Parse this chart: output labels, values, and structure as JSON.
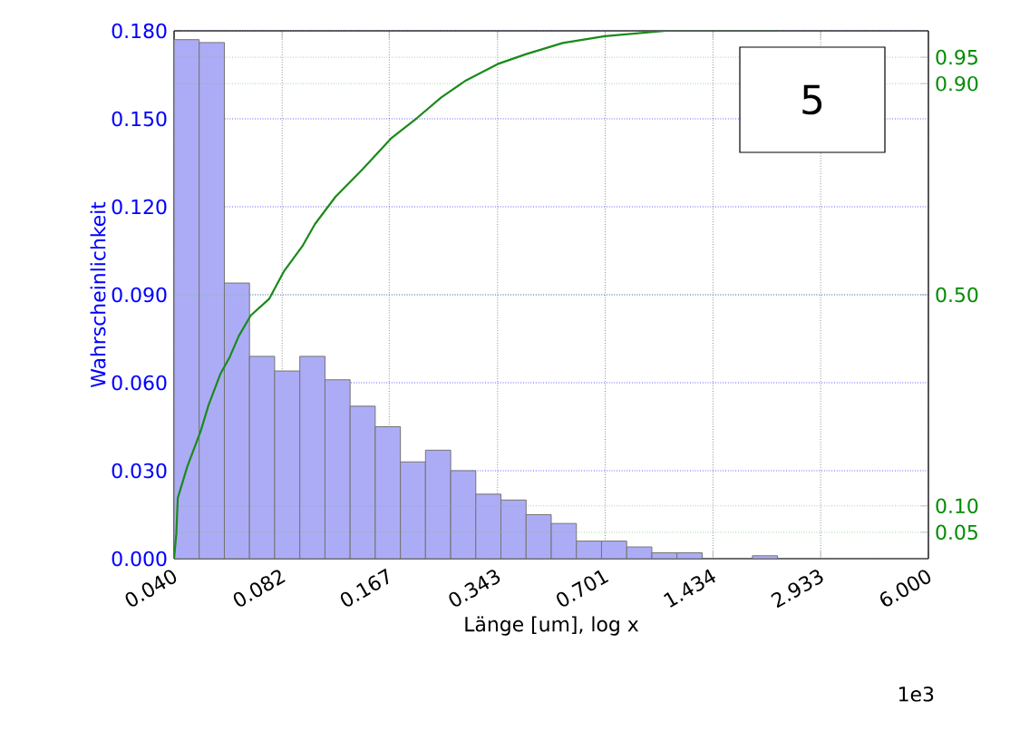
{
  "chart_data": {
    "type": "histogram",
    "xlabel": "Länge [um], log x",
    "ylabel": "Wahrscheinlichkeit",
    "log": "x",
    "grid": true,
    "annotations": [
      "5",
      "1e3"
    ],
    "xlim": [
      0.04,
      6.0
    ],
    "ylim": [
      0,
      0.18
    ],
    "y2lim": [
      0,
      1
    ],
    "xticks": [
      {
        "value": 0.04,
        "label": "0.040"
      },
      {
        "value": 0.082,
        "label": "0.082"
      },
      {
        "value": 0.167,
        "label": "0.167"
      },
      {
        "value": 0.343,
        "label": "0.343"
      },
      {
        "value": 0.701,
        "label": "0.701"
      },
      {
        "value": 1.434,
        "label": "1.434"
      },
      {
        "value": 2.933,
        "label": "2.933"
      },
      {
        "value": 6.0,
        "label": "6.000"
      }
    ],
    "yticks": [
      {
        "value": 0,
        "label": "0.000"
      },
      {
        "value": 0.03,
        "label": "0.030"
      },
      {
        "value": 0.06,
        "label": "0.060"
      },
      {
        "value": 0.09,
        "label": "0.090"
      },
      {
        "value": 0.12,
        "label": "0.120"
      },
      {
        "value": 0.15,
        "label": "0.150"
      },
      {
        "value": 0.18,
        "label": "0.180"
      }
    ],
    "y2ticks": [
      0.05,
      {
        "value": 0.1,
        "label": "0.10"
      },
      {
        "value": 0.5,
        "label": "0.50"
      },
      {
        "value": 0.9,
        "label": "0.90"
      },
      0.95
    ],
    "bins": [
      0.04,
      0.04727,
      0.05587,
      0.06602,
      0.07802,
      0.09221,
      0.109,
      0.1288,
      0.1522,
      0.1799,
      0.2125,
      0.2512,
      0.2968,
      0.3508,
      0.4146,
      0.4899,
      0.579,
      0.6842,
      0.8086,
      0.9556,
      1.129,
      1.335,
      1.577,
      1.864,
      2.203,
      2.603,
      3.076,
      3.636,
      4.296,
      5.077,
      6.0
    ],
    "series": [
      {
        "color": "#acacf6",
        "values": [
          0.177,
          0.176,
          0.094,
          0.069,
          0.064,
          0.069,
          0.061,
          0.052,
          0.045,
          0.033,
          0.037,
          0.03,
          0.022,
          0.02,
          0.015,
          0.012,
          0.006,
          0.006,
          0.004,
          0.002,
          0.002,
          0.0,
          0,
          0.001,
          0,
          0,
          0,
          0,
          0,
          0
        ]
      },
      {
        "type": "line",
        "axis": "y2",
        "color": "#1a8a1a",
        "x": [
          0.04,
          0.0406,
          0.041,
          0.0437,
          0.0477,
          0.0503,
          0.0545,
          0.0579,
          0.0615,
          0.0666,
          0.0752,
          0.0831,
          0.0938,
          0.102,
          0.117,
          0.14,
          0.169,
          0.201,
          0.236,
          0.278,
          0.343,
          0.415,
          0.529,
          0.7,
          1.05,
          2.2
        ],
        "values": [
          0,
          0.047,
          0.115,
          0.175,
          0.241,
          0.291,
          0.351,
          0.382,
          0.422,
          0.461,
          0.492,
          0.545,
          0.592,
          0.634,
          0.686,
          0.738,
          0.796,
          0.835,
          0.874,
          0.906,
          0.937,
          0.956,
          0.977,
          0.99,
          1.0,
          1.0
        ]
      }
    ]
  }
}
